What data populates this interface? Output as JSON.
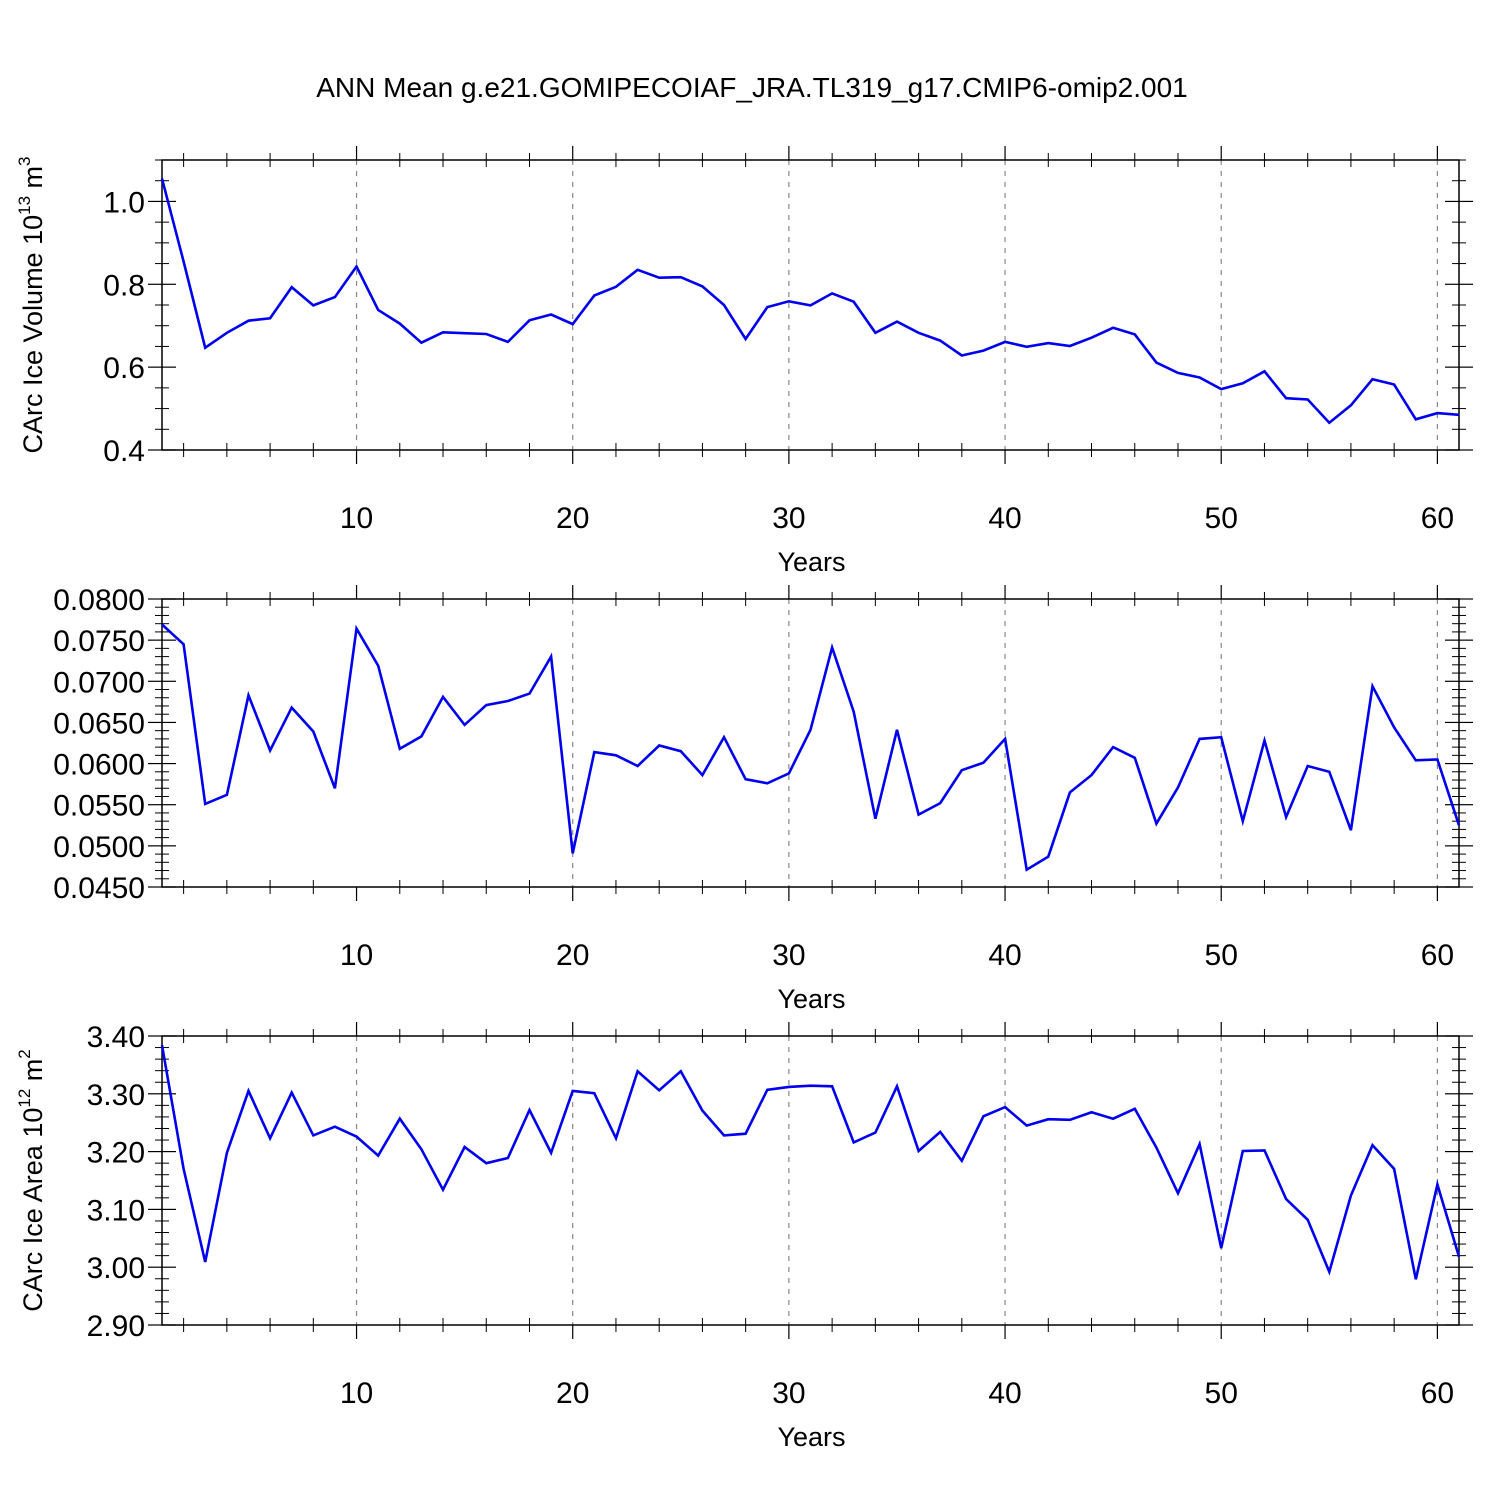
{
  "title": "ANN Mean g.e21.GOMIPECOIAF_JRA.TL319_g17.CMIP6-omip2.001",
  "colors": {
    "line": "#0000ee",
    "axis": "#000000",
    "grid": "#888888"
  },
  "chart_data": [
    {
      "type": "line",
      "xlabel": "Years",
      "ylabel_prefix": "CArc Ice Volume 10",
      "ylabel_exp": "13",
      "ylabel_unit": " m",
      "ylabel_unit_exp": "3",
      "xlim": [
        1,
        61
      ],
      "ylim": [
        0.4,
        1.1
      ],
      "y_major_ticks": [
        0.4,
        0.6,
        0.8,
        1.0
      ],
      "y_tick_labels": [
        "0.4",
        "0.6",
        "0.8",
        "1.0"
      ],
      "y_minor_step": 0.05,
      "x_major_ticks": [
        10,
        20,
        30,
        40,
        50,
        60
      ],
      "x_tick_labels": [
        "10",
        "20",
        "30",
        "40",
        "50",
        "60"
      ],
      "x_grid": [
        10,
        20,
        30,
        40,
        50,
        60
      ],
      "x": [
        1,
        2,
        3,
        4,
        5,
        6,
        7,
        8,
        9,
        10,
        11,
        12,
        13,
        14,
        15,
        16,
        17,
        18,
        19,
        20,
        21,
        22,
        23,
        24,
        25,
        26,
        27,
        28,
        29,
        30,
        31,
        32,
        33,
        34,
        35,
        36,
        37,
        38,
        39,
        40,
        41,
        42,
        43,
        44,
        45,
        46,
        47,
        48,
        49,
        50,
        51,
        52,
        53,
        54,
        55,
        56,
        57,
        58,
        59,
        60,
        61
      ],
      "values": [
        1.055,
        0.855,
        0.647,
        0.683,
        0.712,
        0.718,
        0.793,
        0.749,
        0.769,
        0.843,
        0.738,
        0.705,
        0.659,
        0.684,
        0.682,
        0.68,
        0.661,
        0.713,
        0.727,
        0.704,
        0.773,
        0.794,
        0.835,
        0.816,
        0.817,
        0.795,
        0.75,
        0.668,
        0.745,
        0.759,
        0.749,
        0.778,
        0.758,
        0.683,
        0.71,
        0.683,
        0.664,
        0.628,
        0.64,
        0.661,
        0.649,
        0.658,
        0.651,
        0.671,
        0.695,
        0.679,
        0.611,
        0.586,
        0.575,
        0.547,
        0.561,
        0.59,
        0.525,
        0.522,
        0.466,
        0.508,
        0.571,
        0.558,
        0.474,
        0.489,
        0.485
      ]
    },
    {
      "type": "line",
      "xlabel": "Years",
      "xlim": [
        1,
        61
      ],
      "ylim": [
        0.045,
        0.08
      ],
      "y_major_ticks": [
        0.045,
        0.05,
        0.055,
        0.06,
        0.065,
        0.07,
        0.075,
        0.08
      ],
      "y_tick_labels": [
        "0.0450",
        "0.0500",
        "0.0550",
        "0.0600",
        "0.0650",
        "0.0700",
        "0.0750",
        "0.0800"
      ],
      "y_minor_step": 0.001,
      "x_major_ticks": [
        10,
        20,
        30,
        40,
        50,
        60
      ],
      "x_tick_labels": [
        "10",
        "20",
        "30",
        "40",
        "50",
        "60"
      ],
      "x_grid": [
        20,
        30,
        40,
        50,
        60
      ],
      "x": [
        1,
        2,
        3,
        4,
        5,
        6,
        7,
        8,
        9,
        10,
        11,
        12,
        13,
        14,
        15,
        16,
        17,
        18,
        19,
        20,
        21,
        22,
        23,
        24,
        25,
        26,
        27,
        28,
        29,
        30,
        31,
        32,
        33,
        34,
        35,
        36,
        37,
        38,
        39,
        40,
        41,
        42,
        43,
        44,
        45,
        46,
        47,
        48,
        49,
        50,
        51,
        52,
        53,
        54,
        55,
        56,
        57,
        58,
        59,
        60,
        61
      ],
      "values": [
        0.0769,
        0.0745,
        0.0551,
        0.0562,
        0.0683,
        0.0616,
        0.0668,
        0.0639,
        0.057,
        0.0764,
        0.0719,
        0.0618,
        0.0633,
        0.0681,
        0.0647,
        0.0671,
        0.0676,
        0.0685,
        0.073,
        0.0491,
        0.0614,
        0.061,
        0.0597,
        0.0622,
        0.0615,
        0.0586,
        0.0632,
        0.0581,
        0.0576,
        0.0588,
        0.0641,
        0.0741,
        0.0663,
        0.0533,
        0.0641,
        0.0538,
        0.0552,
        0.0592,
        0.0601,
        0.063,
        0.0471,
        0.0487,
        0.0565,
        0.0586,
        0.062,
        0.0607,
        0.0527,
        0.0571,
        0.063,
        0.0632,
        0.053,
        0.0628,
        0.0535,
        0.0597,
        0.059,
        0.0519,
        0.0694,
        0.0644,
        0.0604,
        0.0605,
        0.0525
      ]
    },
    {
      "type": "line",
      "xlabel": "Years",
      "ylabel_prefix": "CArc Ice Area 10",
      "ylabel_exp": "12",
      "ylabel_unit": " m",
      "ylabel_unit_exp": "2",
      "xlim": [
        1,
        61
      ],
      "ylim": [
        2.9,
        3.4
      ],
      "y_major_ticks": [
        2.9,
        3.0,
        3.1,
        3.2,
        3.3,
        3.4
      ],
      "y_tick_labels": [
        "2.90",
        "3.00",
        "3.10",
        "3.20",
        "3.30",
        "3.40"
      ],
      "y_minor_step": 0.02,
      "x_major_ticks": [
        10,
        20,
        30,
        40,
        50,
        60
      ],
      "x_tick_labels": [
        "10",
        "20",
        "30",
        "40",
        "50",
        "60"
      ],
      "x_grid": [
        10,
        20,
        30,
        40,
        50,
        60
      ],
      "x": [
        1,
        2,
        3,
        4,
        5,
        6,
        7,
        8,
        9,
        10,
        11,
        12,
        13,
        14,
        15,
        16,
        17,
        18,
        19,
        20,
        21,
        22,
        23,
        24,
        25,
        26,
        27,
        28,
        29,
        30,
        31,
        32,
        33,
        34,
        35,
        36,
        37,
        38,
        39,
        40,
        41,
        42,
        43,
        44,
        45,
        46,
        47,
        48,
        49,
        50,
        51,
        52,
        53,
        54,
        55,
        56,
        57,
        58,
        59,
        60,
        61
      ],
      "values": [
        3.384,
        3.17,
        3.009,
        3.198,
        3.305,
        3.223,
        3.302,
        3.228,
        3.243,
        3.226,
        3.193,
        3.257,
        3.204,
        3.134,
        3.208,
        3.18,
        3.189,
        3.272,
        3.198,
        3.305,
        3.301,
        3.223,
        3.339,
        3.306,
        3.339,
        3.271,
        3.228,
        3.231,
        3.307,
        3.312,
        3.314,
        3.313,
        3.216,
        3.233,
        3.313,
        3.201,
        3.234,
        3.184,
        3.261,
        3.277,
        3.245,
        3.256,
        3.255,
        3.268,
        3.257,
        3.274,
        3.207,
        3.128,
        3.213,
        3.033,
        3.201,
        3.202,
        3.118,
        3.082,
        2.992,
        3.124,
        3.211,
        3.17,
        2.979,
        3.143,
        3.018
      ]
    }
  ]
}
